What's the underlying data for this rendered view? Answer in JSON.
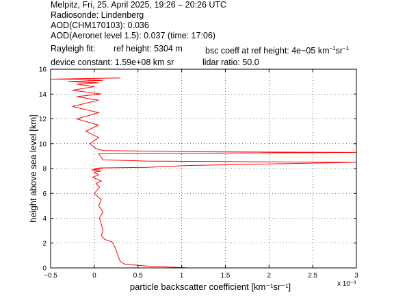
{
  "header": {
    "line1": "Melpitz, Fri, 25. April 2025, 19:26 – 20:26 UTC",
    "line2": "Radiosonde: Lindenberg",
    "line3": "AOD(CHM170103): 0.036",
    "line4": "AOD(Aeronet level 1.5): 0.037   (time: 17:06)",
    "rayleigh_label": "Rayleigh fit:",
    "ref_height": "ref height: 5304 m",
    "bsc_prefix": "bsc coeff at ref height: 4e−05 km",
    "device_constant": "device constant: 1.59e+08 km sr",
    "lidar_ratio": "lidar ratio: 50.0"
  },
  "chart_data": {
    "type": "line",
    "xlabel": "particle backscatter coefficient [km⁻¹sr⁻¹]",
    "ylabel": "height above sea level [km]",
    "x_multiplier": "x 10⁻³",
    "xlim": [
      -0.5,
      3
    ],
    "ylim": [
      0,
      16
    ],
    "x_ticks": [
      "−0.5",
      "0",
      "0.5",
      "1",
      "1.5",
      "2",
      "2.5",
      "3"
    ],
    "y_ticks": [
      "0",
      "2",
      "4",
      "6",
      "8",
      "10",
      "12",
      "14",
      "16"
    ],
    "grid": true,
    "line_color": "#ff0000",
    "series": [
      {
        "x": [
          1.08,
          0.6,
          0.35,
          0.3,
          0.28,
          0.26,
          0.24,
          0.22,
          0.2,
          0.16,
          0.12,
          0.08,
          0.1,
          0.08,
          0.06,
          0.1,
          0.05,
          0.08,
          0.0,
          0.06,
          0.02,
          0.08,
          -0.02,
          0.05,
          0.0,
          0.08,
          -0.03,
          0.06,
          0.0,
          0.1,
          0.05,
          0.6,
          1.1,
          3.0,
          0.6,
          0.1,
          0.05,
          3.0,
          1.2,
          0.1,
          0.02,
          -0.05,
          0.05,
          -0.1,
          0.05,
          -0.2,
          0.05,
          -0.25,
          0.05,
          -0.2,
          0.08,
          -0.25,
          0.0,
          -0.2,
          0.05,
          -0.3,
          0.1,
          -0.5,
          0.3
        ],
        "y": [
          0.0,
          0.15,
          0.3,
          0.5,
          0.8,
          1.2,
          1.6,
          1.9,
          2.1,
          2.2,
          2.3,
          2.6,
          3.0,
          3.5,
          4.0,
          4.5,
          5.0,
          5.5,
          6.0,
          6.5,
          6.8,
          7.0,
          7.3,
          7.5,
          7.7,
          7.8,
          7.9,
          7.95,
          8.0,
          8.02,
          8.05,
          8.1,
          8.25,
          8.5,
          8.6,
          8.7,
          9.2,
          9.3,
          9.35,
          9.45,
          9.6,
          10.0,
          10.5,
          11.0,
          11.5,
          12.0,
          12.5,
          13.0,
          13.5,
          13.8,
          14.0,
          14.3,
          14.6,
          14.8,
          14.9,
          15.0,
          15.1,
          15.2,
          15.3
        ]
      }
    ]
  }
}
